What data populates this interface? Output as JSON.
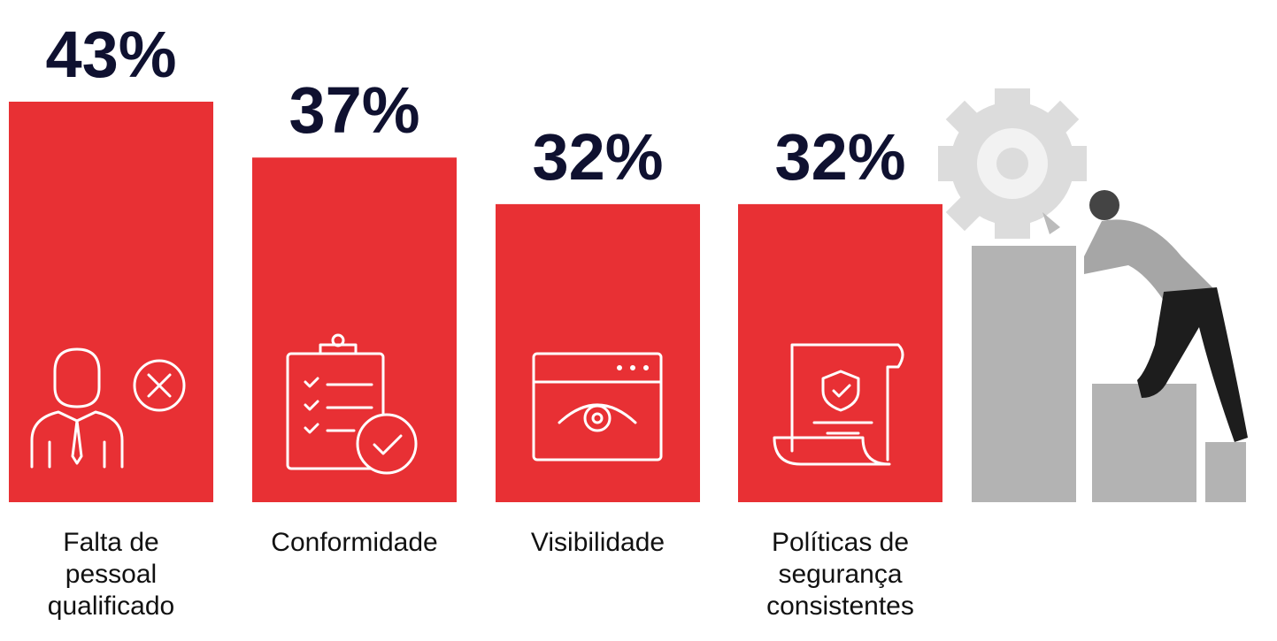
{
  "chart_data": {
    "type": "bar",
    "categories": [
      "Falta de pessoal qualificado",
      "Conformidade",
      "Visibilidade",
      "Políticas de segurança consistentes"
    ],
    "values": [
      43,
      37,
      32,
      32
    ],
    "value_labels": [
      "43%",
      "37%",
      "32%",
      "32%"
    ],
    "color": "#e83034"
  }
}
